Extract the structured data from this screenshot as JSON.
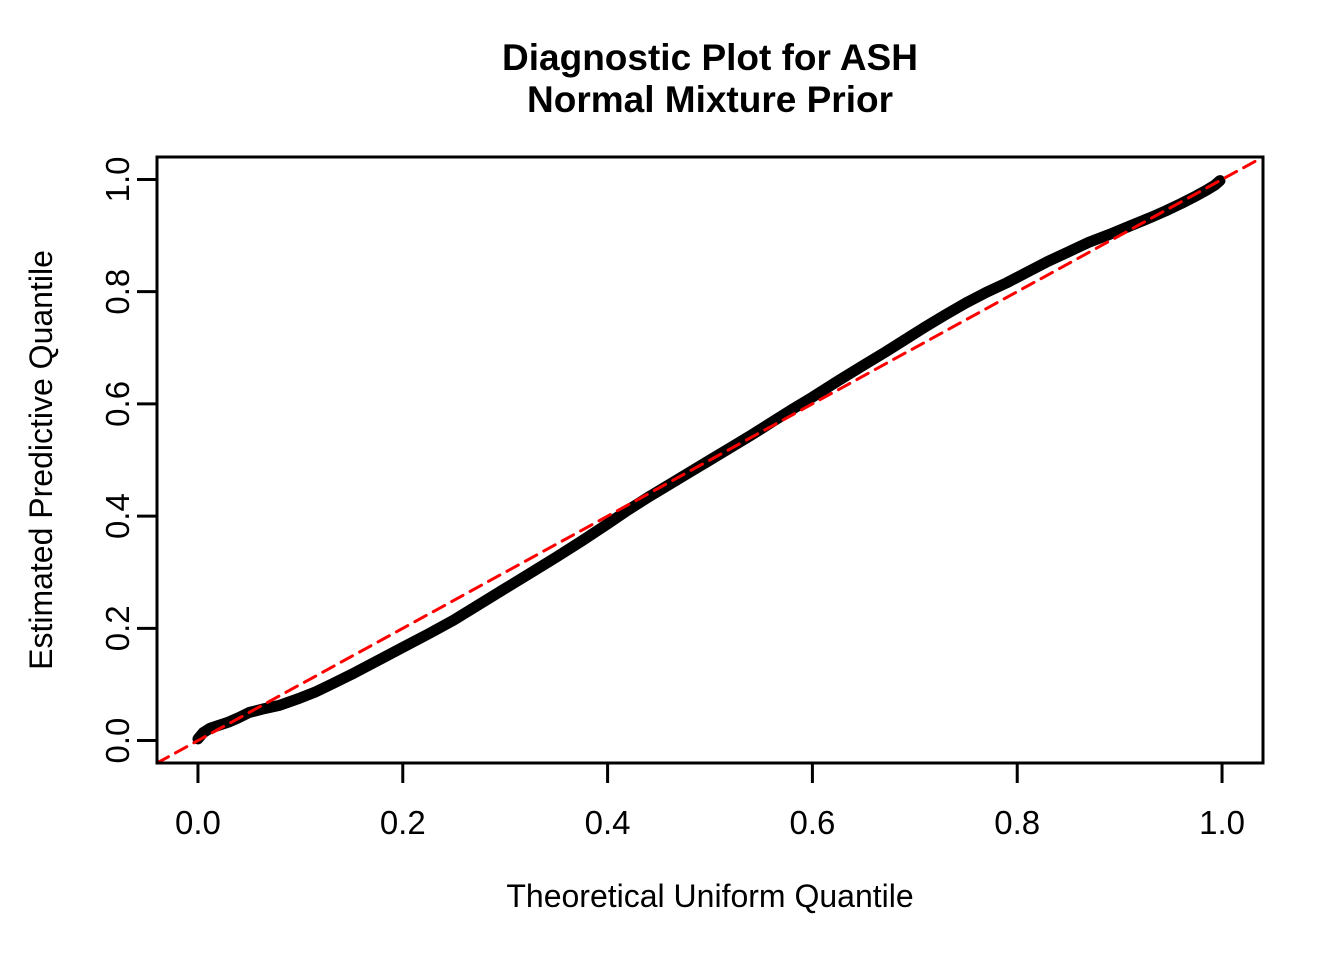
{
  "title": {
    "line1": "Diagnostic Plot for ASH",
    "line2": "Normal Mixture Prior"
  },
  "chart_data": {
    "type": "line",
    "title": "Diagnostic Plot for ASH\nNormal Mixture Prior",
    "xlabel": "Theoretical Uniform Quantile",
    "ylabel": "Estimated Predictive Quantile",
    "xlim": [
      -0.04,
      1.04
    ],
    "ylim": [
      -0.04,
      1.04
    ],
    "x_ticks": [
      0.0,
      0.2,
      0.4,
      0.6,
      0.8,
      1.0
    ],
    "x_tick_labels": [
      "0.0",
      "0.2",
      "0.4",
      "0.6",
      "0.8",
      "1.0"
    ],
    "y_ticks": [
      0.0,
      0.2,
      0.4,
      0.6,
      0.8,
      1.0
    ],
    "y_tick_labels": [
      "0.0",
      "0.2",
      "0.4",
      "0.6",
      "0.8",
      "1.0"
    ],
    "grid": false,
    "legend_position": "none",
    "series": [
      {
        "name": "estimated-predictive-quantile-curve",
        "type": "line",
        "style": "solid",
        "color": "#000000",
        "stroke_width": 11,
        "points": [
          [
            0.0,
            0.003
          ],
          [
            0.005,
            0.014
          ],
          [
            0.012,
            0.022
          ],
          [
            0.02,
            0.027
          ],
          [
            0.03,
            0.033
          ],
          [
            0.04,
            0.041
          ],
          [
            0.05,
            0.05
          ],
          [
            0.065,
            0.057
          ],
          [
            0.08,
            0.063
          ],
          [
            0.1,
            0.076
          ],
          [
            0.114,
            0.086
          ],
          [
            0.13,
            0.1
          ],
          [
            0.15,
            0.118
          ],
          [
            0.175,
            0.142
          ],
          [
            0.2,
            0.166
          ],
          [
            0.225,
            0.19
          ],
          [
            0.25,
            0.215
          ],
          [
            0.275,
            0.243
          ],
          [
            0.3,
            0.271
          ],
          [
            0.325,
            0.299
          ],
          [
            0.35,
            0.327
          ],
          [
            0.375,
            0.356
          ],
          [
            0.4,
            0.386
          ],
          [
            0.42,
            0.411
          ],
          [
            0.44,
            0.434
          ],
          [
            0.46,
            0.456
          ],
          [
            0.48,
            0.478
          ],
          [
            0.5,
            0.5
          ],
          [
            0.52,
            0.522
          ],
          [
            0.54,
            0.544
          ],
          [
            0.56,
            0.567
          ],
          [
            0.58,
            0.59
          ],
          [
            0.6,
            0.612
          ],
          [
            0.625,
            0.641
          ],
          [
            0.65,
            0.669
          ],
          [
            0.67,
            0.691
          ],
          [
            0.69,
            0.714
          ],
          [
            0.71,
            0.737
          ],
          [
            0.73,
            0.759
          ],
          [
            0.75,
            0.78
          ],
          [
            0.77,
            0.799
          ],
          [
            0.79,
            0.816
          ],
          [
            0.81,
            0.835
          ],
          [
            0.83,
            0.854
          ],
          [
            0.85,
            0.871
          ],
          [
            0.87,
            0.888
          ],
          [
            0.89,
            0.902
          ],
          [
            0.91,
            0.917
          ],
          [
            0.93,
            0.932
          ],
          [
            0.945,
            0.944
          ],
          [
            0.96,
            0.957
          ],
          [
            0.975,
            0.971
          ],
          [
            0.985,
            0.981
          ],
          [
            0.993,
            0.99
          ],
          [
            0.998,
            0.998
          ]
        ]
      },
      {
        "name": "identity-reference-line",
        "type": "line",
        "style": "dashed",
        "color": "#FF0000",
        "stroke_width": 3,
        "points": [
          [
            -0.04,
            -0.04
          ],
          [
            1.04,
            1.04
          ]
        ]
      }
    ]
  },
  "colors": {
    "curve": "#000000",
    "reference_line": "#FF0000",
    "axis": "#000000",
    "text": "#000000",
    "background": "#FFFFFF"
  }
}
